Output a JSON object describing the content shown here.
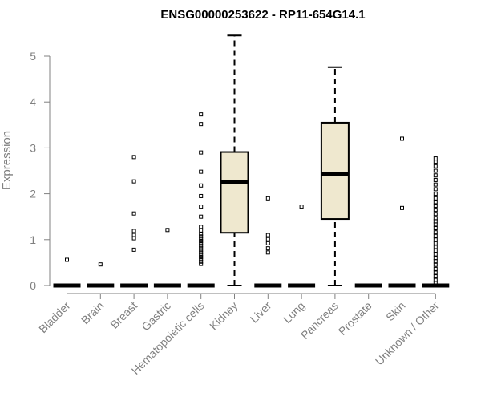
{
  "chart_data": {
    "type": "boxplot",
    "title": "ENSG00000253622 - RP11-654G14.1",
    "xlabel": "",
    "ylabel": "Expression",
    "ylim": [
      0,
      5.5
    ],
    "yticks": [
      0,
      1,
      2,
      3,
      4,
      5
    ],
    "grid": false,
    "legend": "none",
    "box_fill": "#efe8cf",
    "categories": [
      "Bladder",
      "Brain",
      "Breast",
      "Gastric",
      "Hematopoietic cells",
      "Kidney",
      "Liver",
      "Lung",
      "Pancreas",
      "Prostate",
      "Skin",
      "Unknown / Other"
    ],
    "boxes": [
      {
        "category": "Bladder",
        "min": 0,
        "q1": 0,
        "median": 0,
        "q3": 0,
        "max": 0,
        "outliers": [
          0.56
        ]
      },
      {
        "category": "Brain",
        "min": 0,
        "q1": 0,
        "median": 0,
        "q3": 0,
        "max": 0,
        "outliers": [
          0.46
        ]
      },
      {
        "category": "Breast",
        "min": 0,
        "q1": 0,
        "median": 0,
        "q3": 0,
        "max": 0,
        "outliers": [
          0.78,
          1.03,
          1.1,
          1.19,
          1.57,
          2.27,
          2.8
        ]
      },
      {
        "category": "Gastric",
        "min": 0,
        "q1": 0,
        "median": 0,
        "q3": 0,
        "max": 0,
        "outliers": [
          1.21
        ]
      },
      {
        "category": "Hematopoietic cells",
        "min": 0,
        "q1": 0,
        "median": 0,
        "q3": 0,
        "max": 0,
        "outliers": [
          0.47,
          0.52,
          0.57,
          0.62,
          0.67,
          0.72,
          0.77,
          0.82,
          0.87,
          0.92,
          0.97,
          1.02,
          1.07,
          1.12,
          1.2,
          1.28,
          1.5,
          1.72,
          1.95,
          2.18,
          2.48,
          2.9,
          3.52,
          3.73
        ]
      },
      {
        "category": "Kidney",
        "min": 0,
        "q1": 1.15,
        "median": 2.26,
        "q3": 2.91,
        "max": 5.45,
        "outliers": []
      },
      {
        "category": "Liver",
        "min": 0,
        "q1": 0,
        "median": 0,
        "q3": 0,
        "max": 0,
        "outliers": [
          0.72,
          0.81,
          0.92,
          1.01,
          1.1,
          1.9
        ]
      },
      {
        "category": "Lung",
        "min": 0,
        "q1": 0,
        "median": 0,
        "q3": 0,
        "max": 0,
        "outliers": [
          1.72
        ]
      },
      {
        "category": "Pancreas",
        "min": 0,
        "q1": 1.45,
        "median": 2.43,
        "q3": 3.55,
        "max": 4.76,
        "outliers": []
      },
      {
        "category": "Prostate",
        "min": 0,
        "q1": 0,
        "median": 0,
        "q3": 0,
        "max": 0,
        "outliers": []
      },
      {
        "category": "Skin",
        "min": 0,
        "q1": 0,
        "median": 0,
        "q3": 0,
        "max": 0,
        "outliers": [
          1.69,
          3.2
        ]
      },
      {
        "category": "Unknown / Other",
        "min": 0,
        "q1": 0,
        "median": 0,
        "q3": 0,
        "max": 0,
        "outliers": [
          0.05,
          0.12,
          0.2,
          0.28,
          0.36,
          0.45,
          0.53,
          0.6,
          0.68,
          0.76,
          0.84,
          0.92,
          1.0,
          1.08,
          1.16,
          1.25,
          1.33,
          1.4,
          1.47,
          1.56,
          1.65,
          1.74,
          1.82,
          1.9,
          2.0,
          2.1,
          2.2,
          2.3,
          2.4,
          2.5,
          2.6,
          2.7,
          2.77
        ]
      }
    ]
  }
}
